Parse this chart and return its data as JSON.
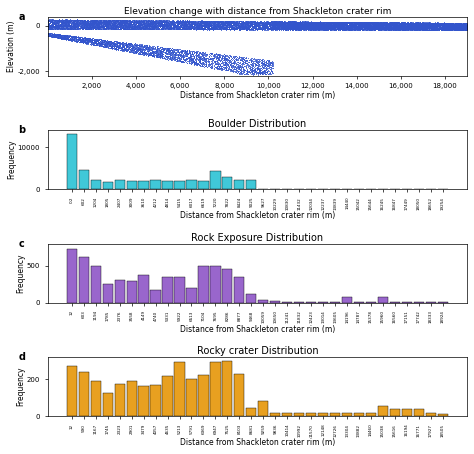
{
  "panel_a": {
    "title": "Elevation change with distance from Shackleton crater rim",
    "xlabel": "Distance from Shackleton crater rim (m)",
    "ylabel": "Elevation (m)",
    "xlim": [
      0,
      19000
    ],
    "ylim": [
      -2200,
      400
    ],
    "yticks": [
      0,
      -2000
    ],
    "ytick_labels": [
      "0",
      "-2,000"
    ],
    "xticks": [
      2000,
      4000,
      6000,
      8000,
      10000,
      12000,
      14000,
      16000,
      18000
    ],
    "xtick_labels": [
      "2,000",
      "4,000",
      "6,000",
      "8,000",
      "10,000",
      "12,000",
      "14,000",
      "16,000",
      "18,000"
    ],
    "color": "#3355cc"
  },
  "panel_b": {
    "title": "Boulder Distribution",
    "xlabel": "Distance from Shackleton crater rim (m)",
    "ylabel": "Frequency",
    "color": "#40c8d8",
    "bar_labels": [
      "0.2",
      "602",
      "1204",
      "1805",
      "2407",
      "3009",
      "3610",
      "4212",
      "4814",
      "5415",
      "6017",
      "6619",
      "7220",
      "7822",
      "8424",
      "9025",
      "9627",
      "10229",
      "10830",
      "11432",
      "12034",
      "12237",
      "13839",
      "14440",
      "15042",
      "15644",
      "16245",
      "16847",
      "17449",
      "18050",
      "18652",
      "19254"
    ],
    "bar_values": [
      13000,
      4500,
      2200,
      1600,
      2200,
      2000,
      2000,
      2100,
      2000,
      2000,
      2100,
      2000,
      4300,
      2800,
      2300,
      2300,
      80,
      80,
      80,
      80,
      80,
      80,
      80,
      80,
      80,
      80,
      80,
      80,
      80,
      80,
      80,
      80
    ],
    "ylim": [
      0,
      14000
    ],
    "yticks": [
      0,
      10000
    ]
  },
  "panel_c": {
    "title": "Rock Exposure Distribution",
    "xlabel": "Distance from Shackleton crater rim (m)",
    "ylabel": "Frequency",
    "color": "#9966cc",
    "bar_labels": [
      "12",
      "603",
      "1194",
      "1785",
      "2376",
      "3558",
      "4149",
      "4740",
      "5331",
      "5922",
      "6513",
      "7104",
      "7695",
      "8286",
      "8877",
      "9468",
      "10059",
      "10650",
      "11241",
      "11832",
      "12423",
      "13014",
      "13605",
      "14196",
      "14787",
      "15378",
      "15960",
      "16560",
      "17151",
      "17742",
      "18333",
      "18924"
    ],
    "bar_values": [
      730,
      620,
      490,
      250,
      310,
      290,
      370,
      170,
      350,
      350,
      200,
      490,
      500,
      450,
      350,
      120,
      40,
      20,
      15,
      15,
      15,
      15,
      15,
      80,
      15,
      15,
      80,
      15,
      15,
      15,
      15,
      15
    ],
    "ylim": [
      0,
      800
    ],
    "yticks": [
      0,
      500
    ]
  },
  "panel_d": {
    "title": "Rocky crater Distribution",
    "xlabel": "Distance from Shackleton crater rim (m)",
    "ylabel": "Frequency",
    "color": "#e8a020",
    "bar_labels": [
      "12",
      "590",
      "1167",
      "1745",
      "2323",
      "2901",
      "3479",
      "4057",
      "4635",
      "5213",
      "5791",
      "6369",
      "6947",
      "7525",
      "8103",
      "8681",
      "9259",
      "9836",
      "10414",
      "10992",
      "11570",
      "12148",
      "12726",
      "13304",
      "13882",
      "14460",
      "15038",
      "15616",
      "16194",
      "16771",
      "17927",
      "18505"
    ],
    "bar_values": [
      270,
      240,
      190,
      125,
      175,
      190,
      165,
      170,
      215,
      290,
      200,
      220,
      295,
      300,
      230,
      45,
      80,
      15,
      15,
      15,
      15,
      15,
      15,
      15,
      15,
      15,
      55,
      40,
      40,
      40,
      15,
      10
    ],
    "ylim": [
      0,
      320
    ],
    "yticks": [
      0,
      200
    ]
  }
}
